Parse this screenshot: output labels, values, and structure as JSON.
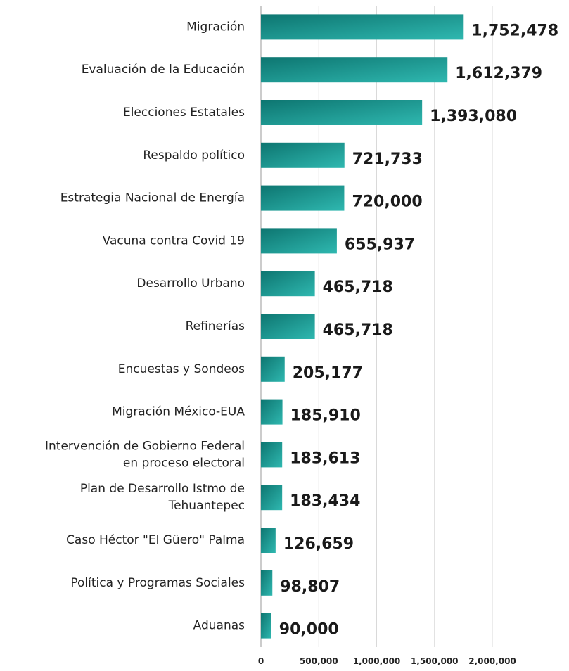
{
  "chart_data": {
    "type": "bar",
    "orientation": "horizontal",
    "categories": [
      "Migración",
      "Evaluación de la Educación",
      "Elecciones Estatales",
      "Respaldo político",
      "Estrategia Nacional de Energía",
      "Vacuna contra Covid 19",
      "Desarrollo Urbano",
      "Refinerías",
      "Encuestas y Sondeos",
      "Migración México-EUA",
      "Intervención de Gobierno Federal en proceso electoral",
      "Plan de Desarrollo Istmo de Tehuantepec",
      "Caso Héctor \"El Güero\" Palma",
      "Política y Programas Sociales",
      "Aduanas"
    ],
    "category_lines": [
      [
        "Migración"
      ],
      [
        "Evaluación de la Educación"
      ],
      [
        "Elecciones Estatales"
      ],
      [
        "Respaldo político"
      ],
      [
        "Estrategia Nacional de Energía"
      ],
      [
        "Vacuna contra Covid 19"
      ],
      [
        "Desarrollo Urbano"
      ],
      [
        "Refinerías"
      ],
      [
        "Encuestas y Sondeos"
      ],
      [
        "Migración México-EUA"
      ],
      [
        "Intervención de Gobierno Federal",
        "en proceso electoral"
      ],
      [
        "Plan de Desarrollo Istmo de",
        "Tehuantepec"
      ],
      [
        "Caso Héctor \"El Güero\" Palma"
      ],
      [
        "Política y Programas Sociales"
      ],
      [
        "Aduanas"
      ]
    ],
    "values": [
      1752478,
      1612379,
      1393080,
      721733,
      720000,
      655937,
      465718,
      465718,
      205177,
      185910,
      183613,
      183434,
      126659,
      98807,
      90000
    ],
    "value_labels": [
      "1,752,478",
      "1,612,379",
      "1,393,080",
      "721,733",
      "720,000",
      "655,937",
      "465,718",
      "465,718",
      "205,177",
      "185,910",
      "183,613",
      "183,434",
      "126,659",
      "98,807",
      "90,000"
    ],
    "xlim": [
      0,
      2000000
    ],
    "x_ticks": [
      0,
      500000,
      1000000,
      1500000,
      2000000
    ],
    "x_tick_labels": [
      "0",
      "500,000",
      "1,000,000",
      "1,500,000",
      "2,000,000"
    ],
    "grid": "vertical",
    "title": "",
    "xlabel": "",
    "ylabel": "",
    "colors": {
      "bar_light": "#2fb8b0",
      "bar_dark": "#0d7570",
      "grid": "#d9d9d9"
    }
  }
}
